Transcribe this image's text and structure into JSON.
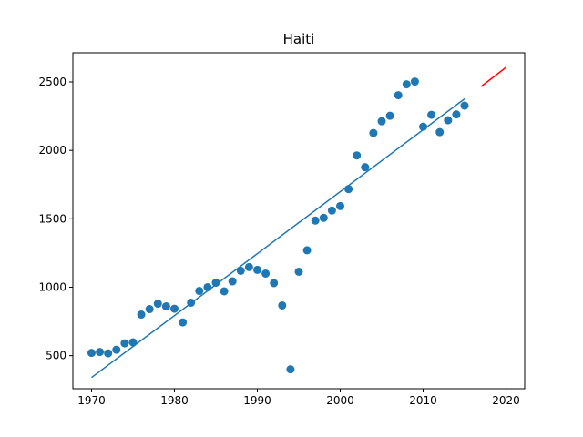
{
  "chart_data": {
    "type": "scatter",
    "title": "Haiti",
    "xlabel": "",
    "ylabel": "",
    "xlim": [
      1967.75,
      2022.25
    ],
    "ylim": [
      258,
      2713
    ],
    "grid": false,
    "x_ticks": [
      1970,
      1980,
      1990,
      2000,
      2010,
      2020
    ],
    "y_ticks": [
      500,
      1000,
      1500,
      2000,
      2500
    ],
    "series": [
      {
        "kind": "scatter",
        "color": "#1f77b4",
        "x": [
          1970,
          1971,
          1972,
          1973,
          1974,
          1975,
          1976,
          1977,
          1978,
          1979,
          1980,
          1981,
          1982,
          1983,
          1984,
          1985,
          1986,
          1987,
          1988,
          1989,
          1990,
          1991,
          1992,
          1993,
          1994,
          1995,
          1996,
          1997,
          1998,
          1999,
          2000,
          2001,
          2002,
          2003,
          2004,
          2005,
          2006,
          2007,
          2008,
          2009,
          2010,
          2011,
          2012,
          2013,
          2014,
          2015
        ],
        "y": [
          520,
          527,
          517,
          543,
          590,
          597,
          800,
          840,
          880,
          860,
          843,
          743,
          887,
          973,
          1000,
          1033,
          970,
          1043,
          1120,
          1147,
          1127,
          1100,
          1030,
          867,
          400,
          1113,
          1270,
          1487,
          1507,
          1560,
          1593,
          1717,
          1963,
          1877,
          2127,
          2213,
          2253,
          2403,
          2483,
          2503,
          2173,
          2260,
          2133,
          2220,
          2263,
          2327
        ]
      },
      {
        "kind": "line",
        "color": "#1f77b4",
        "x": [
          1970,
          2015
        ],
        "y": [
          340,
          2377
        ]
      },
      {
        "kind": "line",
        "color": "#ff0000",
        "x": [
          2017,
          2020
        ],
        "y": [
          2467,
          2607
        ]
      }
    ]
  }
}
